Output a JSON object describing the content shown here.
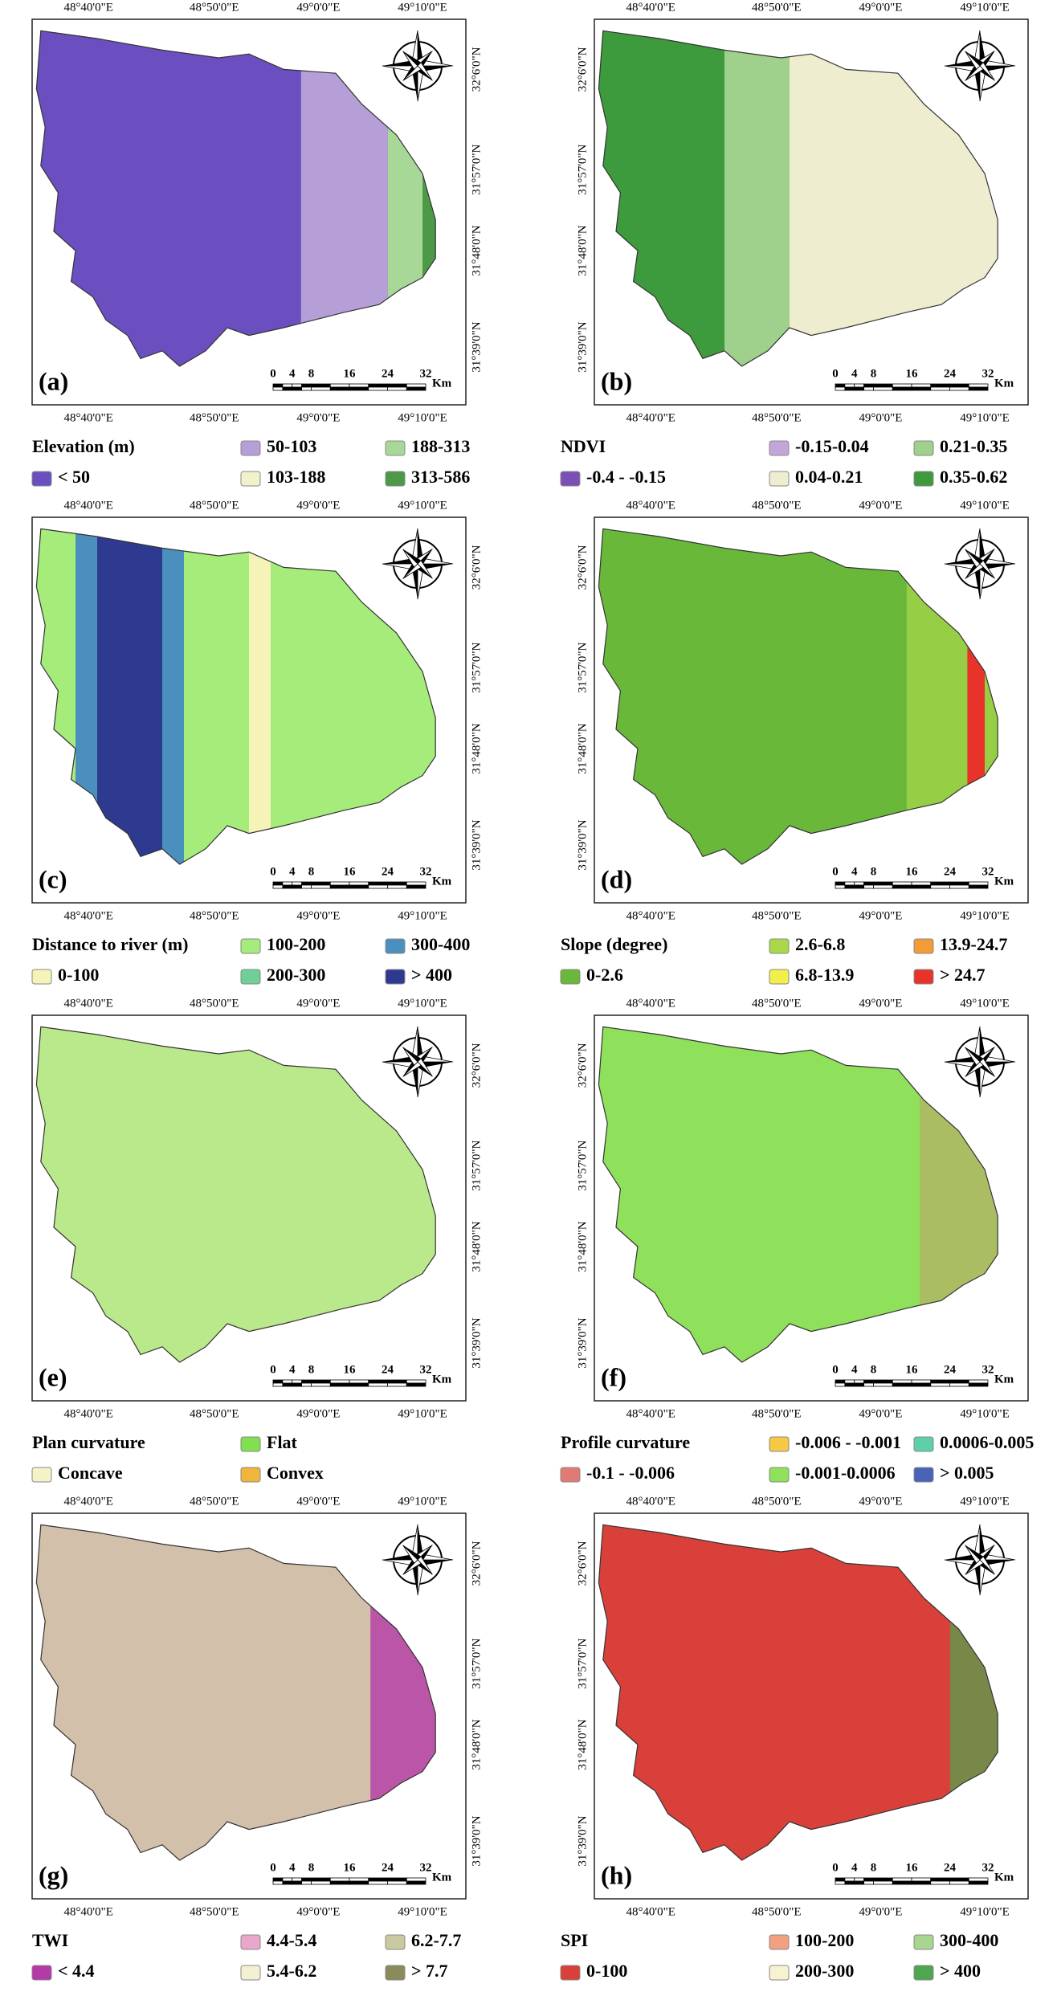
{
  "lon_ticks": [
    "48°40'0\"E",
    "48°50'0\"E",
    "49°0'0\"E",
    "49°10'0\"E"
  ],
  "lat_ticks": [
    "32°6'0\"N",
    "31°57'0\"N",
    "31°48'0\"N",
    "31°39'0\"N"
  ],
  "scale_bar": [
    0,
    4,
    8,
    16,
    24,
    32
  ],
  "scale_unit": "Km",
  "panels": [
    {
      "label": "(a)",
      "legend_title": "Elevation (m)",
      "legend": [
        {
          "label": "< 50",
          "color": "#6b4fc0"
        },
        {
          "label": "50-103",
          "color": "#b59fd6"
        },
        {
          "label": "103-188",
          "color": "#f3f0cc"
        },
        {
          "label": "188-313",
          "color": "#a8d898"
        },
        {
          "label": "313-586",
          "color": "#4c9a48"
        }
      ]
    },
    {
      "label": "(b)",
      "legend_title": "NDVI",
      "legend": [
        {
          "label": "-0.4 - -0.15",
          "color": "#7b4fb5"
        },
        {
          "label": "-0.15-0.04",
          "color": "#c3a6d8"
        },
        {
          "label": "0.04-0.21",
          "color": "#efedcf"
        },
        {
          "label": "0.21-0.35",
          "color": "#9fd08c"
        },
        {
          "label": "0.35-0.62",
          "color": "#3d9a3d"
        }
      ]
    },
    {
      "label": "(c)",
      "legend_title": "Distance to river (m)",
      "legend": [
        {
          "label": "0-100",
          "color": "#f6f3b8"
        },
        {
          "label": "100-200",
          "color": "#a6ec7a"
        },
        {
          "label": "200-300",
          "color": "#6fcf97"
        },
        {
          "label": "300-400",
          "color": "#4b8fbf"
        },
        {
          "label": "> 400",
          "color": "#2e3a8f"
        }
      ]
    },
    {
      "label": "(d)",
      "legend_title": "Slope (degree)",
      "legend": [
        {
          "label": "0-2.6",
          "color": "#6ab83a"
        },
        {
          "label": "2.6-6.8",
          "color": "#a9d94a"
        },
        {
          "label": "6.8-13.9",
          "color": "#f2ef4a"
        },
        {
          "label": "13.9-24.7",
          "color": "#f39b36"
        },
        {
          "label": "> 24.7",
          "color": "#e8332b"
        }
      ]
    },
    {
      "label": "(e)",
      "legend_title": "Plan curvature",
      "legend": [
        {
          "label": "Concave",
          "color": "#f5f2c8"
        },
        {
          "label": "Flat",
          "color": "#7fe050"
        },
        {
          "label": "Convex",
          "color": "#f0b53a"
        }
      ]
    },
    {
      "label": "(f)",
      "legend_title": "Profile curvature",
      "legend": [
        {
          "label": "-0.1 - -0.006",
          "color": "#e07b74"
        },
        {
          "label": "-0.006 - -0.001",
          "color": "#f6c844"
        },
        {
          "label": "-0.001-0.0006",
          "color": "#8fe05a"
        },
        {
          "label": "0.0006-0.005",
          "color": "#5fcfa8"
        },
        {
          "label": "> 0.005",
          "color": "#4a62b8"
        }
      ]
    },
    {
      "label": "(g)",
      "legend_title": "TWI",
      "legend": [
        {
          "label": "< 4.4",
          "color": "#b43aa8"
        },
        {
          "label": "4.4-5.4",
          "color": "#e9a7cc"
        },
        {
          "label": "5.4-6.2",
          "color": "#f4f0d2"
        },
        {
          "label": "6.2-7.7",
          "color": "#cbc9a0"
        },
        {
          "label": "> 7.7",
          "color": "#8a8a5a"
        }
      ]
    },
    {
      "label": "(h)",
      "legend_title": "SPI",
      "legend": [
        {
          "label": "0-100",
          "color": "#d9403a"
        },
        {
          "label": "100-200",
          "color": "#f3a081"
        },
        {
          "label": "200-300",
          "color": "#f7f2cf"
        },
        {
          "label": "300-400",
          "color": "#a8d690"
        },
        {
          "label": "> 400",
          "color": "#4fa650"
        }
      ]
    }
  ]
}
